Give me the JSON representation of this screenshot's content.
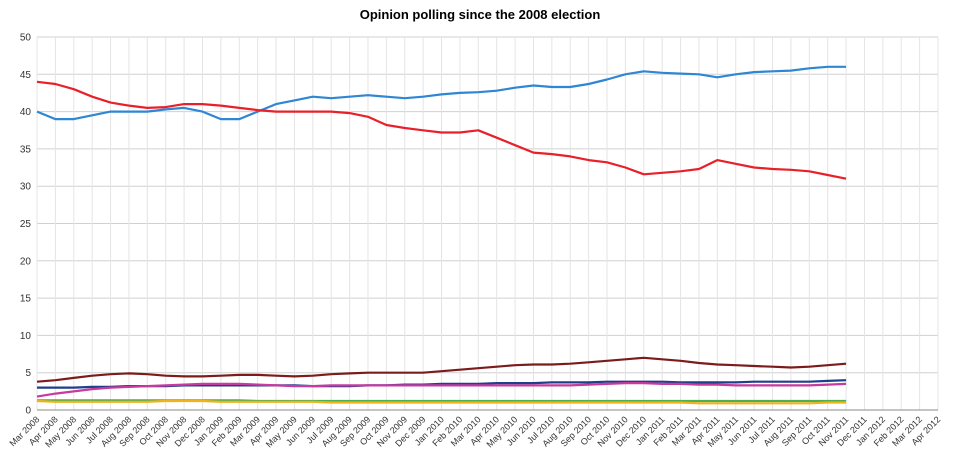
{
  "chart_data": {
    "type": "line",
    "title": "Opinion polling since the 2008 election",
    "categories": [
      "Mar 2008",
      "Apr 2008",
      "May 2008",
      "Jun 2008",
      "Jul 2008",
      "Aug 2008",
      "Sep 2008",
      "Oct 2008",
      "Nov 2008",
      "Dec 2008",
      "Jan 2009",
      "Feb 2009",
      "Mar 2009",
      "Apr 2009",
      "May 2009",
      "Jun 2009",
      "Jul 2009",
      "Aug 2009",
      "Sep 2009",
      "Oct 2009",
      "Nov 2009",
      "Dec 2009",
      "Jan 2010",
      "Feb 2010",
      "Mar 2010",
      "Apr 2010",
      "May 2010",
      "Jun 2010",
      "Jul 2010",
      "Aug 2010",
      "Sep 2010",
      "Oct 2010",
      "Nov 2010",
      "Dec 2010",
      "Jan 2011",
      "Feb 2011",
      "Mar 2011",
      "Apr 2011",
      "May 2011",
      "Jun 2011",
      "Jul 2011",
      "Aug 2011",
      "Sep 2011",
      "Oct 2011",
      "Nov 2011",
      "Dec 2011",
      "Jan 2012",
      "Feb 2012",
      "Mar 2012",
      "Apr 2012"
    ],
    "series": [
      {
        "color": "#2e86d4",
        "values": [
          40,
          39,
          39,
          39.5,
          40,
          40,
          40,
          40.3,
          40.5,
          40,
          39,
          39,
          40,
          41,
          41.5,
          42,
          41.8,
          42,
          42.2,
          42,
          41.8,
          42,
          42.3,
          42.5,
          42.6,
          42.8,
          43.2,
          43.5,
          43.3,
          43.3,
          43.7,
          44.3,
          45,
          45.4,
          45.2,
          45.1,
          45,
          44.6,
          45,
          45.3,
          45.4,
          45.5,
          45.8,
          46,
          46,
          null,
          null,
          null,
          null,
          null
        ]
      },
      {
        "color": "#e8202a",
        "values": [
          44,
          43.7,
          43,
          42,
          41.2,
          40.8,
          40.5,
          40.6,
          41,
          41,
          40.8,
          40.5,
          40.2,
          40,
          40,
          40,
          40,
          39.8,
          39.3,
          38.2,
          37.8,
          37.5,
          37.2,
          37.2,
          37.5,
          36.5,
          35.5,
          34.5,
          34.3,
          34,
          33.5,
          33.2,
          32.5,
          31.6,
          31.8,
          32,
          32.3,
          33.5,
          33,
          32.5,
          32.3,
          32.2,
          32,
          31.5,
          31,
          null,
          null,
          null,
          null,
          null
        ]
      },
      {
        "color": "#7b1c1c",
        "values": [
          3.8,
          4,
          4.3,
          4.6,
          4.8,
          4.9,
          4.8,
          4.6,
          4.5,
          4.5,
          4.6,
          4.7,
          4.7,
          4.6,
          4.5,
          4.6,
          4.8,
          4.9,
          5,
          5,
          5,
          5,
          5.2,
          5.4,
          5.6,
          5.8,
          6,
          6.1,
          6.1,
          6.2,
          6.4,
          6.6,
          6.8,
          7,
          6.8,
          6.6,
          6.3,
          6.1,
          6,
          5.9,
          5.8,
          5.7,
          5.8,
          6,
          6.2,
          null,
          null,
          null,
          null,
          null
        ]
      },
      {
        "color": "#1f3f8c",
        "values": [
          3,
          3,
          3,
          3.1,
          3.1,
          3.2,
          3.2,
          3.2,
          3.3,
          3.3,
          3.3,
          3.3,
          3.3,
          3.3,
          3.3,
          3.2,
          3.2,
          3.2,
          3.3,
          3.3,
          3.4,
          3.4,
          3.5,
          3.5,
          3.5,
          3.6,
          3.6,
          3.6,
          3.7,
          3.7,
          3.7,
          3.8,
          3.8,
          3.8,
          3.8,
          3.7,
          3.7,
          3.7,
          3.7,
          3.8,
          3.8,
          3.8,
          3.8,
          3.9,
          4,
          null,
          null,
          null,
          null,
          null
        ]
      },
      {
        "color": "#c73a9e",
        "values": [
          1.8,
          2.2,
          2.5,
          2.8,
          3,
          3.1,
          3.2,
          3.3,
          3.4,
          3.5,
          3.5,
          3.5,
          3.4,
          3.3,
          3.2,
          3.2,
          3.3,
          3.3,
          3.3,
          3.3,
          3.3,
          3.3,
          3.3,
          3.3,
          3.3,
          3.3,
          3.3,
          3.3,
          3.3,
          3.3,
          3.4,
          3.5,
          3.6,
          3.6,
          3.5,
          3.5,
          3.4,
          3.4,
          3.3,
          3.3,
          3.3,
          3.3,
          3.3,
          3.4,
          3.5,
          null,
          null,
          null,
          null,
          null
        ]
      },
      {
        "color": "#4caf50",
        "values": [
          1.3,
          1.3,
          1.3,
          1.3,
          1.3,
          1.3,
          1.3,
          1.3,
          1.3,
          1.3,
          1.3,
          1.3,
          1.2,
          1.2,
          1.2,
          1.2,
          1.2,
          1.2,
          1.2,
          1.2,
          1.2,
          1.2,
          1.2,
          1.2,
          1.2,
          1.2,
          1.2,
          1.2,
          1.2,
          1.2,
          1.2,
          1.2,
          1.2,
          1.2,
          1.2,
          1.2,
          1.2,
          1.2,
          1.2,
          1.2,
          1.2,
          1.2,
          1.2,
          1.2,
          1.2,
          null,
          null,
          null,
          null,
          null
        ]
      },
      {
        "color": "#f2b21a",
        "values": [
          1.2,
          1.1,
          1.1,
          1.1,
          1.1,
          1.1,
          1.1,
          1.2,
          1.2,
          1.2,
          1.1,
          1.1,
          1.1,
          1.1,
          1.1,
          1.1,
          1.0,
          1.0,
          1.0,
          1.0,
          1.0,
          1.0,
          1.0,
          1.0,
          1.0,
          1.0,
          1.0,
          1.0,
          1.0,
          1.0,
          1.0,
          1.0,
          1.0,
          1.0,
          1.0,
          1.0,
          0.9,
          0.9,
          0.9,
          0.9,
          0.9,
          0.9,
          0.9,
          1.0,
          1.0,
          null,
          null,
          null,
          null,
          null
        ]
      }
    ],
    "ylim": [
      0,
      50
    ],
    "yticks": [
      0,
      5,
      10,
      15,
      20,
      25,
      30,
      35,
      40,
      45,
      50
    ],
    "grid": true
  }
}
